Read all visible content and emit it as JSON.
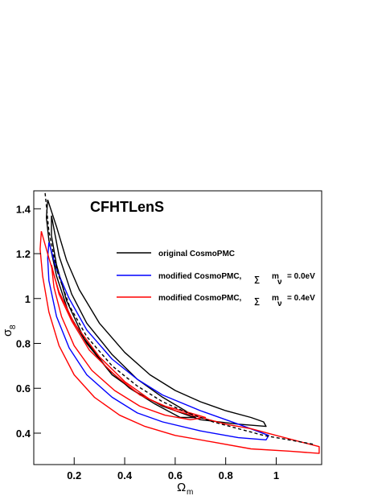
{
  "chart_data": {
    "type": "line",
    "title": "CFHTLenS",
    "xlabel": "Ω",
    "xlabel_sub": "m",
    "ylabel": "σ",
    "ylabel_sub": "8",
    "xlim": [
      0.04,
      1.18
    ],
    "ylim": [
      0.26,
      1.48
    ],
    "xticks": [
      0.2,
      0.4,
      0.6,
      0.8,
      1.0
    ],
    "xtick_labels": [
      "0.2",
      "0.4",
      "0.6",
      "0.8",
      "1"
    ],
    "yticks": [
      0.4,
      0.6,
      0.8,
      1.0,
      1.2,
      1.4
    ],
    "ytick_labels": [
      "0.4",
      "0.6",
      "0.8",
      "1",
      "1.2",
      "1.4"
    ],
    "legend": {
      "placement": "upper-right",
      "entries": [
        {
          "label": "original CosmoPMC",
          "color": "#000000"
        },
        {
          "prefix": "modified CosmoPMC,",
          "symbol": "∑",
          "m": "m",
          "nu": "ν",
          "suffix": "= 0.0eV",
          "color": "#0000ff"
        },
        {
          "prefix": "modified CosmoPMC,",
          "symbol": "∑",
          "m": "m",
          "nu": "ν",
          "suffix": "= 0.4eV",
          "color": "#ff0000"
        }
      ]
    },
    "series": [
      {
        "name": "original CosmoPMC",
        "color": "#000000",
        "contours": [
          [
            [
              0.095,
              1.44
            ],
            [
              0.13,
              1.32
            ],
            [
              0.17,
              1.17
            ],
            [
              0.22,
              1.04
            ],
            [
              0.3,
              0.89
            ],
            [
              0.4,
              0.76
            ],
            [
              0.5,
              0.66
            ],
            [
              0.6,
              0.59
            ],
            [
              0.7,
              0.54
            ],
            [
              0.8,
              0.5
            ],
            [
              0.9,
              0.47
            ],
            [
              0.95,
              0.45
            ],
            [
              0.96,
              0.43
            ],
            [
              0.85,
              0.44
            ],
            [
              0.7,
              0.46
            ],
            [
              0.55,
              0.52
            ],
            [
              0.45,
              0.58
            ],
            [
              0.35,
              0.66
            ],
            [
              0.25,
              0.8
            ],
            [
              0.18,
              0.93
            ],
            [
              0.13,
              1.1
            ],
            [
              0.1,
              1.26
            ],
            [
              0.09,
              1.36
            ],
            [
              0.095,
              1.44
            ]
          ],
          [
            [
              0.11,
              1.37
            ],
            [
              0.14,
              1.19
            ],
            [
              0.19,
              1.02
            ],
            [
              0.25,
              0.89
            ],
            [
              0.35,
              0.75
            ],
            [
              0.45,
              0.64
            ],
            [
              0.55,
              0.56
            ],
            [
              0.64,
              0.5
            ],
            [
              0.68,
              0.47
            ],
            [
              0.62,
              0.47
            ],
            [
              0.52,
              0.53
            ],
            [
              0.42,
              0.6
            ],
            [
              0.33,
              0.69
            ],
            [
              0.24,
              0.82
            ],
            [
              0.17,
              0.99
            ],
            [
              0.13,
              1.15
            ],
            [
              0.11,
              1.28
            ],
            [
              0.11,
              1.37
            ]
          ]
        ]
      },
      {
        "name": "modified CosmoPMC, ∑ mν = 0.0eV",
        "color": "#0000ff",
        "contours": [
          [
            [
              0.1,
              1.25
            ],
            [
              0.13,
              1.13
            ],
            [
              0.18,
              1.0
            ],
            [
              0.25,
              0.86
            ],
            [
              0.35,
              0.73
            ],
            [
              0.45,
              0.64
            ],
            [
              0.55,
              0.57
            ],
            [
              0.7,
              0.5
            ],
            [
              0.85,
              0.44
            ],
            [
              0.97,
              0.39
            ],
            [
              0.96,
              0.37
            ],
            [
              0.85,
              0.38
            ],
            [
              0.7,
              0.41
            ],
            [
              0.55,
              0.45
            ],
            [
              0.45,
              0.49
            ],
            [
              0.35,
              0.56
            ],
            [
              0.25,
              0.66
            ],
            [
              0.18,
              0.78
            ],
            [
              0.13,
              0.92
            ],
            [
              0.1,
              1.08
            ],
            [
              0.095,
              1.18
            ],
            [
              0.1,
              1.25
            ]
          ],
          [
            [
              0.04,
              0.36
            ],
            [
              0.04,
              0.36
            ]
          ]
        ]
      },
      {
        "name": "modified CosmoPMC, ∑ mν = 0.4eV",
        "color": "#ff0000",
        "contours": [
          [
            [
              0.07,
              1.3
            ],
            [
              0.1,
              1.18
            ],
            [
              0.14,
              1.03
            ],
            [
              0.2,
              0.89
            ],
            [
              0.3,
              0.74
            ],
            [
              0.4,
              0.63
            ],
            [
              0.5,
              0.55
            ],
            [
              0.6,
              0.5
            ],
            [
              0.7,
              0.47
            ],
            [
              0.8,
              0.44
            ],
            [
              0.9,
              0.42
            ],
            [
              1.0,
              0.39
            ],
            [
              1.1,
              0.36
            ],
            [
              1.17,
              0.34
            ],
            [
              1.17,
              0.31
            ],
            [
              1.05,
              0.32
            ],
            [
              0.9,
              0.33
            ],
            [
              0.75,
              0.36
            ],
            [
              0.6,
              0.39
            ],
            [
              0.48,
              0.43
            ],
            [
              0.38,
              0.48
            ],
            [
              0.28,
              0.56
            ],
            [
              0.2,
              0.66
            ],
            [
              0.14,
              0.79
            ],
            [
              0.1,
              0.94
            ],
            [
              0.075,
              1.1
            ],
            [
              0.065,
              1.22
            ],
            [
              0.07,
              1.3
            ]
          ],
          [
            [
              0.11,
              1.15
            ],
            [
              0.14,
              1.02
            ],
            [
              0.19,
              0.9
            ],
            [
              0.26,
              0.77
            ],
            [
              0.36,
              0.66
            ],
            [
              0.46,
              0.57
            ],
            [
              0.56,
              0.52
            ],
            [
              0.66,
              0.49
            ],
            [
              0.72,
              0.47
            ],
            [
              0.66,
              0.46
            ],
            [
              0.56,
              0.48
            ],
            [
              0.46,
              0.52
            ],
            [
              0.36,
              0.59
            ],
            [
              0.27,
              0.68
            ],
            [
              0.2,
              0.79
            ],
            [
              0.15,
              0.92
            ],
            [
              0.12,
              1.05
            ],
            [
              0.11,
              1.15
            ]
          ]
        ]
      },
      {
        "name": "",
        "color": "#000000",
        "dashed": true,
        "contours": [
          [
            [
              0.085,
              1.47
            ],
            [
              0.1,
              1.3
            ],
            [
              0.13,
              1.13
            ],
            [
              0.18,
              0.97
            ],
            [
              0.25,
              0.83
            ],
            [
              0.35,
              0.7
            ],
            [
              0.45,
              0.61
            ],
            [
              0.55,
              0.54
            ],
            [
              0.65,
              0.49
            ],
            [
              0.75,
              0.45
            ],
            [
              0.85,
              0.42
            ],
            [
              0.95,
              0.39
            ],
            [
              1.05,
              0.37
            ],
            [
              1.15,
              0.35
            ]
          ]
        ]
      }
    ]
  }
}
